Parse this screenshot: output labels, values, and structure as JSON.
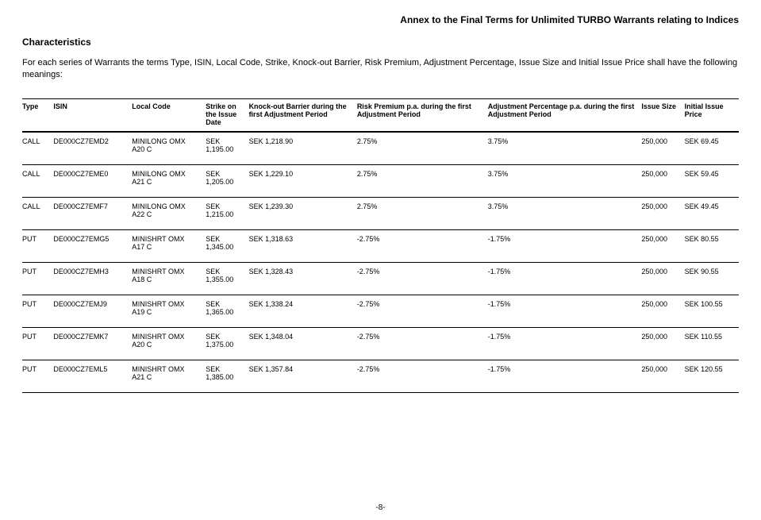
{
  "header": {
    "annex": "Annex to the Final Terms for Unlimited TURBO Warrants relating to Indices",
    "characteristics": "Characteristics",
    "intro": "For each series of Warrants the terms Type, ISIN, Local Code, Strike, Knock-out Barrier, Risk Premium, Adjustment Percentage, Issue Size and Initial Issue Price shall have the following meanings:"
  },
  "columns": {
    "type": "Type",
    "isin": "ISIN",
    "local": "Local Code",
    "strike": "Strike on the Issue Date",
    "ko": "Knock-out Barrier during the first Adjustment Period",
    "risk": "Risk Premium p.a. during the first Adjustment Period",
    "adj": "Adjustment Percentage p.a. during the first Adjustment Period",
    "size": "Issue Size",
    "price": "Initial Issue Price"
  },
  "rows": [
    {
      "type": "CALL",
      "isin": "DE000CZ7EMD2",
      "local": "MINILONG OMX A20 C",
      "strike": "SEK 1,195.00",
      "ko": "SEK 1,218.90",
      "risk": "2.75%",
      "adj": "3.75%",
      "size": "250,000",
      "price": "SEK 69.45"
    },
    {
      "type": "CALL",
      "isin": "DE000CZ7EME0",
      "local": "MINILONG OMX A21 C",
      "strike": "SEK 1,205.00",
      "ko": "SEK 1,229.10",
      "risk": "2.75%",
      "adj": "3.75%",
      "size": "250,000",
      "price": "SEK 59.45"
    },
    {
      "type": "CALL",
      "isin": "DE000CZ7EMF7",
      "local": "MINILONG OMX A22 C",
      "strike": "SEK 1,215.00",
      "ko": "SEK 1,239.30",
      "risk": "2.75%",
      "adj": "3.75%",
      "size": "250,000",
      "price": "SEK 49.45"
    },
    {
      "type": "PUT",
      "isin": "DE000CZ7EMG5",
      "local": "MINISHRT OMX A17 C",
      "strike": "SEK 1,345.00",
      "ko": "SEK 1,318.63",
      "risk": "-2.75%",
      "adj": "-1.75%",
      "size": "250,000",
      "price": "SEK 80.55"
    },
    {
      "type": "PUT",
      "isin": "DE000CZ7EMH3",
      "local": "MINISHRT OMX A18 C",
      "strike": "SEK 1,355.00",
      "ko": "SEK 1,328.43",
      "risk": "-2.75%",
      "adj": "-1.75%",
      "size": "250,000",
      "price": "SEK 90.55"
    },
    {
      "type": "PUT",
      "isin": "DE000CZ7EMJ9",
      "local": "MINISHRT OMX A19 C",
      "strike": "SEK 1,365.00",
      "ko": "SEK 1,338.24",
      "risk": "-2.75%",
      "adj": "-1.75%",
      "size": "250,000",
      "price": "SEK 100.55"
    },
    {
      "type": "PUT",
      "isin": "DE000CZ7EMK7",
      "local": "MINISHRT OMX A20 C",
      "strike": "SEK 1,375.00",
      "ko": "SEK 1,348.04",
      "risk": "-2.75%",
      "adj": "-1.75%",
      "size": "250,000",
      "price": "SEK 110.55"
    },
    {
      "type": "PUT",
      "isin": "DE000CZ7EML5",
      "local": "MINISHRT OMX A21 C",
      "strike": "SEK 1,385.00",
      "ko": "SEK 1,357.84",
      "risk": "-2.75%",
      "adj": "-1.75%",
      "size": "250,000",
      "price": "SEK 120.55"
    }
  ],
  "pageNumber": "-8-"
}
